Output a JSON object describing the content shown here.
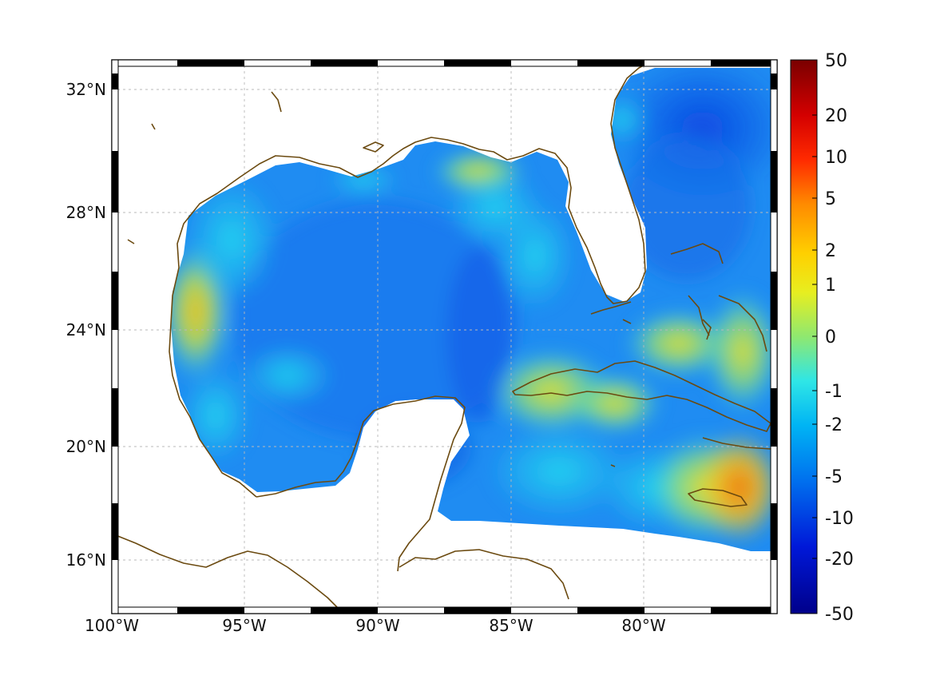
{
  "map": {
    "lon_labels": [
      "100°W",
      "95°W",
      "90°W",
      "85°W",
      "80°W"
    ],
    "lat_labels": [
      "32°N",
      "28°N",
      "24°N",
      "20°N",
      "16°N"
    ],
    "colorbar_ticks": [
      "50",
      "20",
      "10",
      "5",
      "2",
      "1",
      "0",
      "-1",
      "-2",
      "-5",
      "-10",
      "-20",
      "-50"
    ],
    "coastline_color": "#6b4a10",
    "colormap": "jet"
  }
}
